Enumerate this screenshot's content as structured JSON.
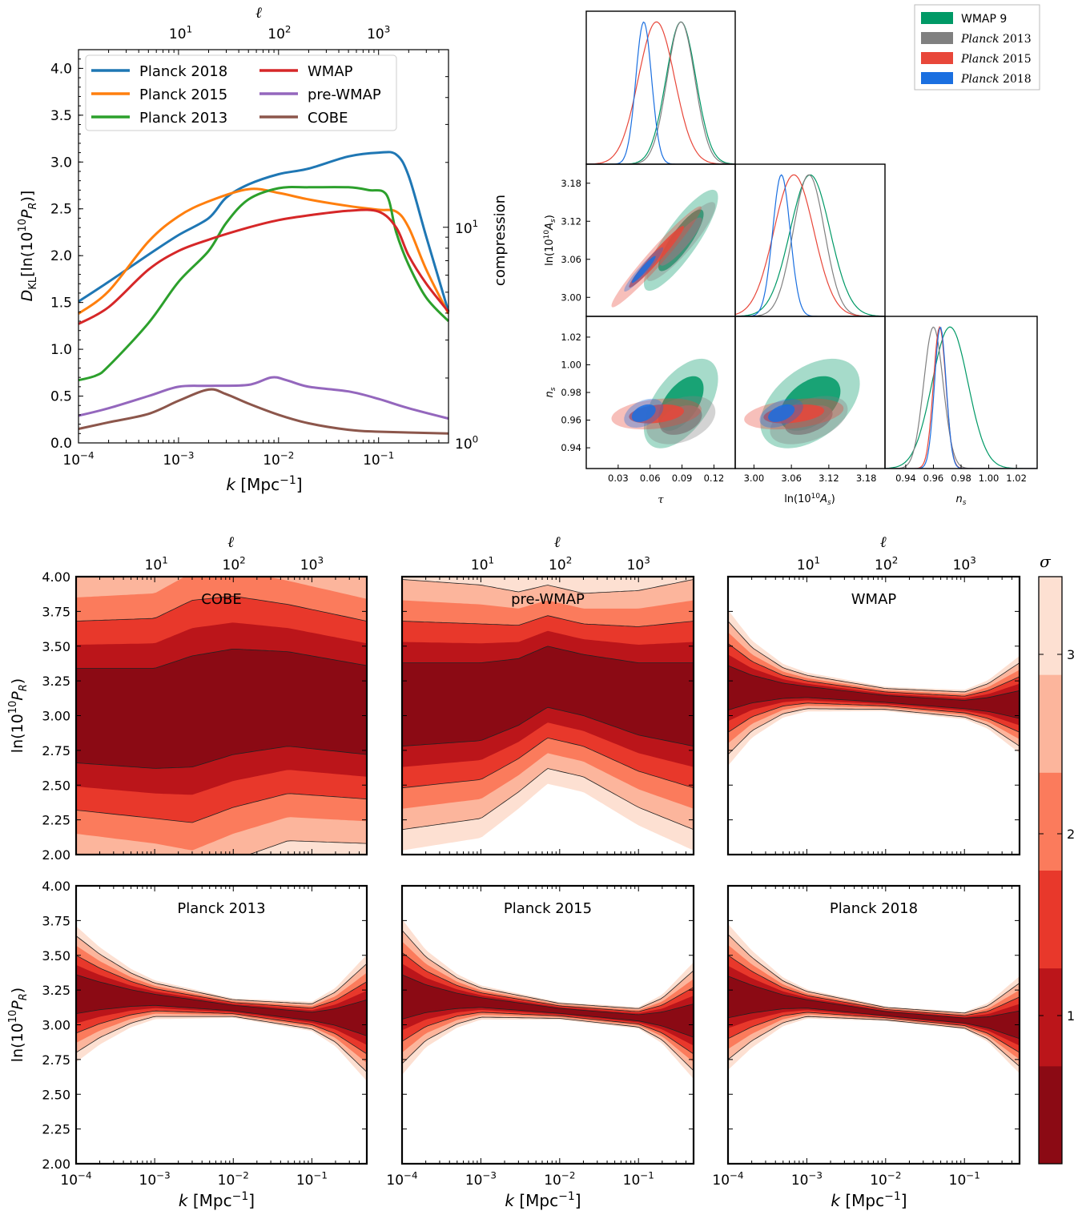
{
  "colors": {
    "planck2018": "#1f77b4",
    "planck2015": "#ff7f0e",
    "planck2013": "#2ca02c",
    "wmap": "#d62728",
    "prewmap": "#9467bd",
    "cobe": "#8c564b",
    "tri_wmap9": "#009966",
    "tri_planck2013": "#808080",
    "tri_planck2015": "#e8473a",
    "tri_planck2018": "#1a6fe0",
    "sigma_levels": [
      "#fde0d2",
      "#fcb59c",
      "#fb7b5c",
      "#e8382b",
      "#bb151a",
      "#8b0a14"
    ]
  },
  "chart_data": [
    {
      "name": "kl-divergence",
      "type": "line",
      "xscale": "log",
      "xlim": [
        0.0001,
        0.5
      ],
      "ylim": [
        0.0,
        4.2
      ],
      "xlabel": "k",
      "xlabel_unit": "[Mpc",
      "xlabel_sup": "−1",
      "xlabel_close": "]",
      "ylabel": "D_KL[ln(10^10 P_R)]",
      "ylabel_right": "compression",
      "top_axis_label": "ℓ",
      "top_ticks": [
        {
          "base": "10",
          "exp": "1",
          "k": 0.00105
        },
        {
          "base": "10",
          "exp": "2",
          "k": 0.0102
        },
        {
          "base": "10",
          "exp": "3",
          "k": 0.1
        }
      ],
      "right_ticks": [
        {
          "base": "10",
          "exp": "0",
          "y": 0.0
        },
        {
          "base": "10",
          "exp": "1",
          "y": 2.303
        }
      ],
      "xticks": [
        {
          "base": "10",
          "exp": "−4",
          "v": 0.0001
        },
        {
          "base": "10",
          "exp": "−3",
          "v": 0.001
        },
        {
          "base": "10",
          "exp": "−2",
          "v": 0.01
        },
        {
          "base": "10",
          "exp": "−1",
          "v": 0.1
        }
      ],
      "yticks": [
        "0.0",
        "0.5",
        "1.0",
        "1.5",
        "2.0",
        "2.5",
        "3.0",
        "3.5",
        "4.0"
      ],
      "series": [
        {
          "name": "Planck 2018",
          "color_key": "planck2018",
          "points": [
            [
              0.0001,
              1.51
            ],
            [
              0.0002,
              1.72
            ],
            [
              0.0005,
              2.01
            ],
            [
              0.001,
              2.22
            ],
            [
              0.002,
              2.4
            ],
            [
              0.003,
              2.62
            ],
            [
              0.005,
              2.76
            ],
            [
              0.01,
              2.87
            ],
            [
              0.02,
              2.93
            ],
            [
              0.05,
              3.06
            ],
            [
              0.1,
              3.1
            ],
            [
              0.15,
              3.08
            ],
            [
              0.2,
              2.85
            ],
            [
              0.3,
              2.2
            ],
            [
              0.5,
              1.4
            ]
          ]
        },
        {
          "name": "Planck 2015",
          "color_key": "planck2015",
          "points": [
            [
              0.0001,
              1.38
            ],
            [
              0.0002,
              1.62
            ],
            [
              0.0005,
              2.15
            ],
            [
              0.001,
              2.42
            ],
            [
              0.002,
              2.58
            ],
            [
              0.005,
              2.71
            ],
            [
              0.01,
              2.67
            ],
            [
              0.02,
              2.6
            ],
            [
              0.05,
              2.53
            ],
            [
              0.1,
              2.49
            ],
            [
              0.15,
              2.47
            ],
            [
              0.2,
              2.3
            ],
            [
              0.3,
              1.85
            ],
            [
              0.5,
              1.38
            ]
          ]
        },
        {
          "name": "Planck 2013",
          "color_key": "planck2013",
          "points": [
            [
              0.0001,
              0.67
            ],
            [
              0.00015,
              0.72
            ],
            [
              0.0002,
              0.82
            ],
            [
              0.0005,
              1.28
            ],
            [
              0.001,
              1.72
            ],
            [
              0.002,
              2.05
            ],
            [
              0.003,
              2.35
            ],
            [
              0.005,
              2.6
            ],
            [
              0.01,
              2.72
            ],
            [
              0.02,
              2.73
            ],
            [
              0.05,
              2.73
            ],
            [
              0.08,
              2.7
            ],
            [
              0.12,
              2.65
            ],
            [
              0.15,
              2.25
            ],
            [
              0.2,
              1.9
            ],
            [
              0.3,
              1.55
            ],
            [
              0.5,
              1.3
            ]
          ]
        },
        {
          "name": "WMAP",
          "color_key": "wmap",
          "points": [
            [
              0.0001,
              1.27
            ],
            [
              0.0002,
              1.45
            ],
            [
              0.0005,
              1.85
            ],
            [
              0.001,
              2.05
            ],
            [
              0.002,
              2.17
            ],
            [
              0.005,
              2.3
            ],
            [
              0.01,
              2.38
            ],
            [
              0.02,
              2.43
            ],
            [
              0.05,
              2.48
            ],
            [
              0.1,
              2.47
            ],
            [
              0.15,
              2.3
            ],
            [
              0.2,
              2.0
            ],
            [
              0.3,
              1.7
            ],
            [
              0.5,
              1.4
            ]
          ]
        },
        {
          "name": "pre-WMAP",
          "color_key": "prewmap",
          "points": [
            [
              0.0001,
              0.29
            ],
            [
              0.0002,
              0.37
            ],
            [
              0.0005,
              0.5
            ],
            [
              0.001,
              0.6
            ],
            [
              0.002,
              0.61
            ],
            [
              0.005,
              0.62
            ],
            [
              0.0085,
              0.7
            ],
            [
              0.012,
              0.67
            ],
            [
              0.02,
              0.6
            ],
            [
              0.05,
              0.55
            ],
            [
              0.1,
              0.47
            ],
            [
              0.2,
              0.37
            ],
            [
              0.5,
              0.26
            ]
          ]
        },
        {
          "name": "COBE",
          "color_key": "cobe",
          "points": [
            [
              0.0001,
              0.15
            ],
            [
              0.0002,
              0.22
            ],
            [
              0.0005,
              0.31
            ],
            [
              0.001,
              0.45
            ],
            [
              0.002,
              0.57
            ],
            [
              0.003,
              0.52
            ],
            [
              0.005,
              0.42
            ],
            [
              0.01,
              0.3
            ],
            [
              0.02,
              0.21
            ],
            [
              0.05,
              0.14
            ],
            [
              0.1,
              0.12
            ],
            [
              0.5,
              0.1
            ]
          ]
        }
      ]
    },
    {
      "name": "triangle-plot",
      "type": "scatter",
      "params": [
        "τ",
        "ln(10^10 A_s)",
        "n_s"
      ],
      "param_labels": [
        {
          "main": "τ"
        },
        {
          "main": "ln(10",
          "sup": "10",
          "tail": "A",
          "sub": "s",
          "close": ")"
        },
        {
          "main": "n",
          "sub": "s"
        }
      ],
      "ticks": {
        "tau": [
          "0.03",
          "0.06",
          "0.09",
          "0.12"
        ],
        "lnAs": [
          "3.00",
          "3.06",
          "3.12",
          "3.18"
        ],
        "ns": [
          "0.94",
          "0.96",
          "0.98",
          "1.00",
          "1.02"
        ]
      },
      "ranges": {
        "tau": [
          0.0,
          0.14
        ],
        "lnAs": [
          2.97,
          3.21
        ],
        "ns": [
          0.925,
          1.035
        ]
      },
      "legend": [
        "WMAP 9",
        "Planck 2013",
        "Planck 2015",
        "Planck 2018"
      ],
      "legend_italic_prefix": [
        false,
        true,
        true,
        true
      ],
      "legend_base": [
        "WMAP 9",
        "Planck",
        "Planck",
        "Planck"
      ],
      "legend_year": [
        "",
        "2013",
        "2015",
        "2018"
      ],
      "series": [
        {
          "name": "WMAP 9",
          "color_key": "tri_wmap9",
          "tau": [
            0.089,
            0.014
          ],
          "lnAs": [
            3.09,
            0.032
          ],
          "ns": [
            0.972,
            0.013
          ],
          "corr_tA": 0.85,
          "corr_tn": 0.55,
          "corr_An": 0.45
        },
        {
          "name": "Planck 2013",
          "color_key": "tri_planck2013",
          "tau": [
            0.089,
            0.013
          ],
          "lnAs": [
            3.088,
            0.025
          ],
          "ns": [
            0.96,
            0.007
          ],
          "corr_tA": 0.9,
          "corr_tn": 0.35,
          "corr_An": 0.45
        },
        {
          "name": "Planck 2015",
          "color_key": "tri_planck2015",
          "tau": [
            0.066,
            0.017
          ],
          "lnAs": [
            3.064,
            0.032
          ],
          "ns": [
            0.9645,
            0.0045
          ],
          "corr_tA": 0.97,
          "corr_tn": 0.3,
          "corr_An": 0.35
        },
        {
          "name": "Planck 2018",
          "color_key": "tri_planck2018",
          "tau": [
            0.054,
            0.0074
          ],
          "lnAs": [
            3.044,
            0.014
          ],
          "ns": [
            0.965,
            0.0042
          ],
          "corr_tA": 0.95,
          "corr_tn": 0.4,
          "corr_An": 0.45
        }
      ]
    },
    {
      "name": "reconstructions",
      "type": "heatmap",
      "xscale": "log",
      "xlim": [
        0.0001,
        0.5
      ],
      "ylim": [
        2.0,
        4.0
      ],
      "xlabel": "k",
      "xlabel_unit": "[Mpc",
      "xlabel_sup": "−1",
      "xlabel_close": "]",
      "ylabel": "ln(10^10 P_R)",
      "top_axis_label": "ℓ",
      "yticks": [
        "2.00",
        "2.25",
        "2.50",
        "2.75",
        "3.00",
        "3.25",
        "3.50",
        "3.75",
        "4.00"
      ],
      "colorbar_label": "σ",
      "colorbar_ticks": [
        "1",
        "2",
        "3"
      ],
      "panels": [
        {
          "title": "COBE",
          "c": [
            [
              0.0001,
              3.0
            ],
            [
              0.001,
              2.98
            ],
            [
              0.003,
              3.03
            ],
            [
              0.01,
              3.1
            ],
            [
              0.05,
              3.12
            ],
            [
              0.5,
              3.04
            ]
          ],
          "w": [
            [
              0.0001,
              0.34
            ],
            [
              0.001,
              0.36
            ],
            [
              0.003,
              0.4
            ],
            [
              0.01,
              0.38
            ],
            [
              0.05,
              0.34
            ],
            [
              0.5,
              0.32
            ]
          ]
        },
        {
          "title": "pre-WMAP",
          "c": [
            [
              0.0001,
              3.08
            ],
            [
              0.001,
              3.1
            ],
            [
              0.003,
              3.17
            ],
            [
              0.007,
              3.28
            ],
            [
              0.02,
              3.22
            ],
            [
              0.1,
              3.12
            ],
            [
              0.5,
              3.08
            ]
          ],
          "w": [
            [
              0.0001,
              0.3
            ],
            [
              0.001,
              0.28
            ],
            [
              0.003,
              0.24
            ],
            [
              0.007,
              0.22
            ],
            [
              0.02,
              0.22
            ],
            [
              0.1,
              0.26
            ],
            [
              0.5,
              0.3
            ]
          ]
        },
        {
          "title": "WMAP",
          "c": [
            [
              0.0001,
              3.2
            ],
            [
              0.001,
              3.17
            ],
            [
              0.01,
              3.12
            ],
            [
              0.1,
              3.08
            ],
            [
              0.5,
              3.08
            ]
          ],
          "w": [
            [
              0.0001,
              0.16
            ],
            [
              0.0002,
              0.1
            ],
            [
              0.0005,
              0.055
            ],
            [
              0.001,
              0.04
            ],
            [
              0.01,
              0.025
            ],
            [
              0.1,
              0.03
            ],
            [
              0.2,
              0.05
            ],
            [
              0.5,
              0.1
            ]
          ]
        },
        {
          "title": "Planck 2013",
          "c": [
            [
              0.0001,
              3.22
            ],
            [
              0.001,
              3.18
            ],
            [
              0.01,
              3.12
            ],
            [
              0.1,
              3.06
            ],
            [
              0.5,
              3.05
            ]
          ],
          "w": [
            [
              0.0001,
              0.14
            ],
            [
              0.0002,
              0.1
            ],
            [
              0.0005,
              0.06
            ],
            [
              0.001,
              0.04
            ],
            [
              0.01,
              0.02
            ],
            [
              0.1,
              0.03
            ],
            [
              0.2,
              0.06
            ],
            [
              0.5,
              0.13
            ]
          ]
        },
        {
          "title": "Planck 2015",
          "c": [
            [
              0.0001,
              3.2
            ],
            [
              0.001,
              3.16
            ],
            [
              0.01,
              3.1
            ],
            [
              0.1,
              3.05
            ],
            [
              0.5,
              3.03
            ]
          ],
          "w": [
            [
              0.0001,
              0.16
            ],
            [
              0.0002,
              0.1
            ],
            [
              0.0005,
              0.055
            ],
            [
              0.001,
              0.035
            ],
            [
              0.01,
              0.018
            ],
            [
              0.1,
              0.022
            ],
            [
              0.2,
              0.05
            ],
            [
              0.5,
              0.12
            ]
          ]
        },
        {
          "title": "Planck 2018",
          "c": [
            [
              0.0001,
              3.2
            ],
            [
              0.001,
              3.15
            ],
            [
              0.01,
              3.08
            ],
            [
              0.1,
              3.03
            ],
            [
              0.5,
              3.0
            ]
          ],
          "w": [
            [
              0.0001,
              0.15
            ],
            [
              0.0002,
              0.1
            ],
            [
              0.0005,
              0.05
            ],
            [
              0.001,
              0.03
            ],
            [
              0.01,
              0.015
            ],
            [
              0.1,
              0.018
            ],
            [
              0.2,
              0.04
            ],
            [
              0.5,
              0.1
            ]
          ]
        }
      ]
    }
  ]
}
